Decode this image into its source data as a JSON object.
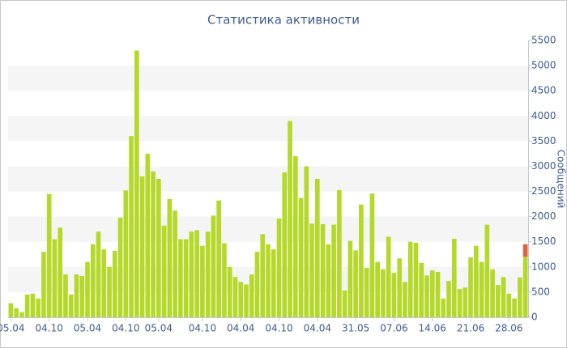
{
  "chart_data": {
    "type": "bar",
    "title": "Статистика активности",
    "y_label": "Сообщений",
    "categories": [
      "05.04",
      null,
      null,
      null,
      null,
      null,
      null,
      "04.10",
      null,
      null,
      null,
      null,
      null,
      null,
      "05.04",
      null,
      null,
      null,
      null,
      null,
      null,
      "04.10",
      null,
      null,
      null,
      null,
      null,
      "05.04",
      null,
      null,
      null,
      null,
      null,
      null,
      null,
      "04.10",
      null,
      null,
      null,
      null,
      null,
      null,
      "04.04",
      null,
      null,
      null,
      null,
      null,
      null,
      "04.10",
      null,
      null,
      null,
      null,
      null,
      null,
      "04.04",
      null,
      null,
      null,
      null,
      null,
      null,
      "31.05",
      null,
      null,
      null,
      null,
      null,
      null,
      "07.06",
      null,
      null,
      null,
      null,
      null,
      null,
      "14.06",
      null,
      null,
      null,
      null,
      null,
      null,
      "21.06",
      null,
      null,
      null,
      null,
      null,
      null,
      "28.06",
      null,
      null,
      null
    ],
    "series": [
      {
        "color": "#b5d92b",
        "values": [
          280,
          180,
          100,
          450,
          470,
          370,
          1300,
          2450,
          1550,
          1780,
          850,
          450,
          850,
          820,
          1100,
          1450,
          1700,
          1350,
          1000,
          1320,
          1980,
          2520,
          3600,
          5300,
          2800,
          3250,
          2900,
          2750,
          1820,
          2350,
          2120,
          1550,
          1550,
          1700,
          1730,
          1420,
          1700,
          2020,
          2320,
          1470,
          1000,
          800,
          700,
          650,
          850,
          1300,
          1650,
          1450,
          1350,
          1960,
          2880,
          3900,
          3200,
          2370,
          3000,
          1860,
          2750,
          1850,
          1450,
          1840,
          2530,
          530,
          1520,
          1330,
          2240,
          980,
          2460,
          1100,
          950,
          1600,
          880,
          1170,
          700,
          1500,
          1480,
          1080,
          830,
          930,
          900,
          370,
          720,
          1560,
          560,
          590,
          1190,
          1420,
          1100,
          1840,
          950,
          640,
          800,
          470,
          370,
          790,
          1200
        ]
      },
      {
        "color": "#e0613c",
        "values": [
          null,
          null,
          null,
          null,
          null,
          null,
          null,
          null,
          null,
          null,
          null,
          null,
          null,
          null,
          null,
          null,
          null,
          null,
          null,
          null,
          null,
          null,
          null,
          null,
          null,
          null,
          null,
          null,
          null,
          null,
          null,
          null,
          null,
          null,
          null,
          null,
          null,
          null,
          null,
          null,
          null,
          null,
          null,
          null,
          null,
          null,
          null,
          null,
          null,
          null,
          null,
          null,
          null,
          null,
          null,
          null,
          null,
          null,
          null,
          null,
          null,
          null,
          null,
          null,
          null,
          null,
          null,
          null,
          null,
          null,
          null,
          null,
          null,
          null,
          null,
          null,
          null,
          null,
          null,
          null,
          null,
          null,
          null,
          null,
          null,
          null,
          null,
          null,
          null,
          null,
          null,
          null,
          null,
          null,
          250
        ]
      }
    ],
    "ylim": [
      0,
      5500
    ],
    "yticks": [
      0,
      500,
      1000,
      1500,
      2000,
      2500,
      3000,
      3500,
      4000,
      4500,
      5000,
      5500
    ],
    "grid": "bands",
    "stacked": true
  }
}
